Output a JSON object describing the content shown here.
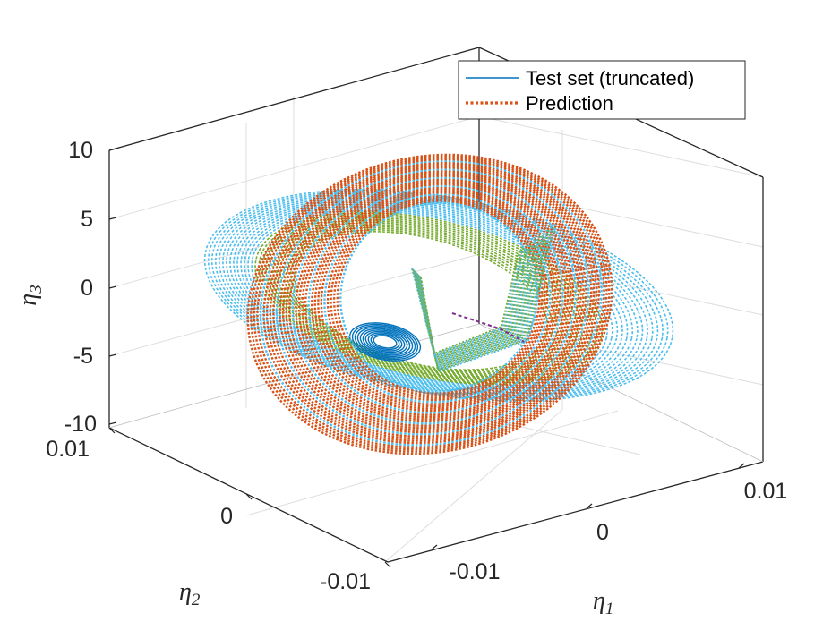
{
  "chart_data": {
    "type": "line3d",
    "title": "",
    "axes": {
      "x": {
        "label": "η",
        "sub": "1",
        "ticks": [
          "-0.01",
          "0",
          "0.01"
        ],
        "lim": [
          -0.015,
          0.015
        ]
      },
      "y": {
        "label": "η",
        "sub": "2",
        "ticks": [
          "-0.01",
          "0",
          "0.01"
        ],
        "lim": [
          -0.015,
          0.015
        ]
      },
      "z": {
        "label": "η",
        "sub": "3",
        "ticks": [
          "-10",
          "-5",
          "0",
          "5",
          "10"
        ],
        "lim": [
          -10,
          10
        ]
      }
    },
    "grid": true,
    "box": true,
    "legend": {
      "placement": "top-right",
      "entries": [
        {
          "name": "Test set (truncated)",
          "color": "#0072BD",
          "style": "solid"
        },
        {
          "name": "Prediction",
          "color": "#D95319",
          "style": "dotted"
        }
      ]
    },
    "series": [
      {
        "name": "Test set (truncated)",
        "shape": "torus trajectory",
        "colors": [
          "#0072BD",
          "#4DBEEE",
          "#77AC30",
          "#7E2F8E"
        ]
      },
      {
        "name": "Prediction",
        "shape": "torus trajectory",
        "colors": [
          "#D95319",
          "#4DBEEE",
          "#77AC30"
        ]
      }
    ]
  }
}
